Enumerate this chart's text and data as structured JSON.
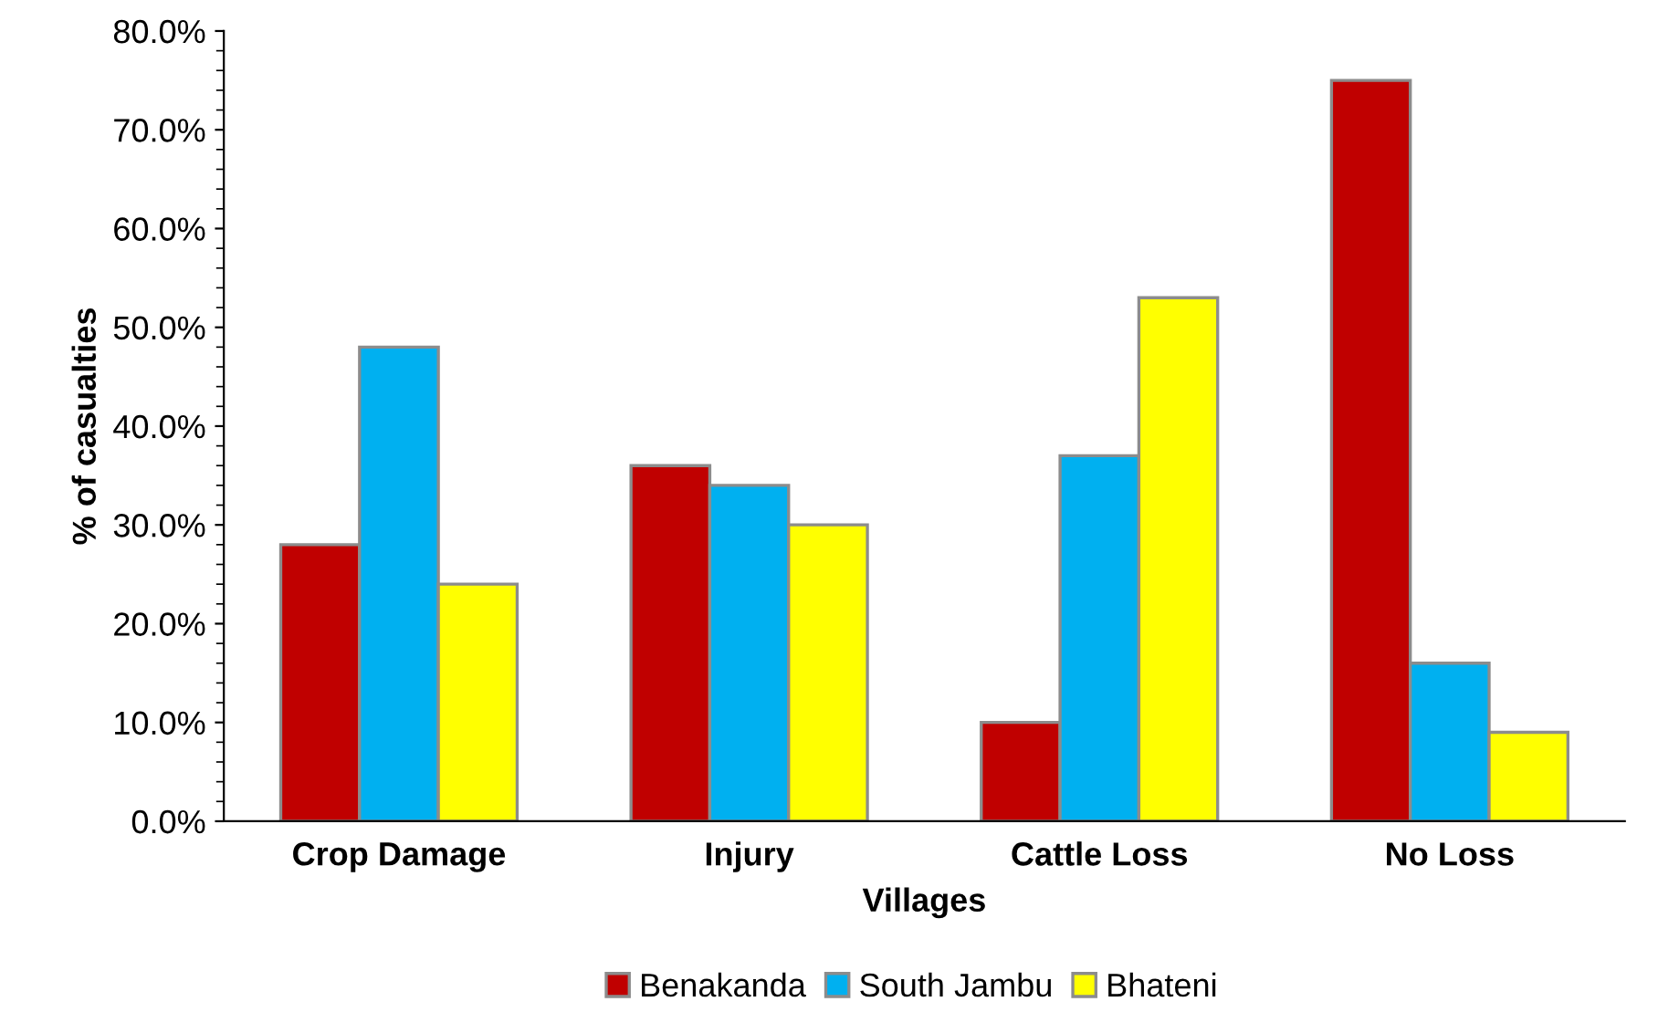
{
  "chart_data": {
    "type": "bar",
    "xlabel": "Villages",
    "ylabel": "% of casualties",
    "categories": [
      "Crop Damage",
      "Injury",
      "Cattle Loss",
      "No Loss"
    ],
    "series": [
      {
        "name": "Benakanda",
        "color": "#c00000",
        "values": [
          28,
          36,
          10,
          75
        ]
      },
      {
        "name": "South Jambu",
        "color": "#00b0f0",
        "values": [
          48,
          34,
          37,
          16
        ]
      },
      {
        "name": "Bhateni",
        "color": "#ffff00",
        "values": [
          24,
          30,
          53,
          9
        ]
      }
    ],
    "ylim": [
      0,
      80
    ],
    "yticks": [
      {
        "value": 0,
        "label": "0.0%"
      },
      {
        "value": 10,
        "label": "10.0%"
      },
      {
        "value": 20,
        "label": "20.0%"
      },
      {
        "value": 30,
        "label": "30.0%"
      },
      {
        "value": 40,
        "label": "40.0%"
      },
      {
        "value": 50,
        "label": "50.0%"
      },
      {
        "value": 60,
        "label": "60.0%"
      },
      {
        "value": 70,
        "label": "70.0%"
      },
      {
        "value": 80,
        "label": "80.0%"
      }
    ],
    "grid": false,
    "legend": "bottom"
  }
}
